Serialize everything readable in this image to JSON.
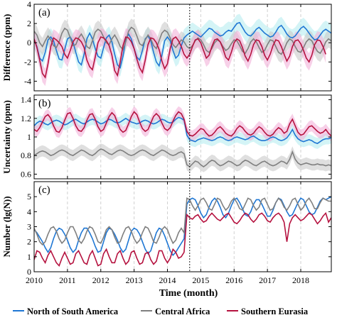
{
  "chart_data": [
    {
      "type": "line",
      "panel_label": "(a)",
      "ylabel": "Difference (ppm)",
      "ylim": [
        -5,
        4
      ],
      "yticks": [
        -4,
        -2,
        0,
        2,
        4
      ],
      "series": [
        {
          "name": "North of South America",
          "color": "#1f77d4",
          "band_color": "#b8ecf0",
          "values": [
            0.3,
            -0.4,
            -1.6,
            -1.9,
            -1.0,
            0.3,
            0.6,
            0.2,
            -0.8,
            -1.7,
            -1.8,
            -0.7,
            0.4,
            0.6,
            0.1,
            -1.0,
            -2.0,
            -2.3,
            -1.2,
            0.4,
            1.0,
            0.4,
            -0.6,
            -1.4,
            -1.6,
            -0.5,
            0.5,
            0.8,
            0.1,
            -1.2,
            -2.3,
            -2.6,
            -1.4,
            0.3,
            0.9,
            0.4,
            -0.6,
            -1.5,
            -1.8,
            -0.8,
            0.4,
            0.7,
            0.2,
            -1.0,
            -2.0,
            -2.4,
            -1.3,
            0.2,
            0.6,
            0.2,
            -0.8,
            -1.6,
            -1.3,
            -0.3,
            0.5,
            0.8,
            1.0,
            1.2,
            1.0,
            0.8,
            0.6,
            0.9,
            1.2,
            1.5,
            1.4,
            1.1,
            0.9,
            0.7,
            0.8,
            1.1,
            1.3,
            1.2,
            1.6,
            2.0,
            2.1,
            1.6,
            1.1,
            0.8,
            0.7,
            1.0,
            1.4,
            1.6,
            1.3,
            1.0,
            0.8,
            0.6,
            0.7,
            1.1,
            1.6,
            1.8,
            1.4,
            0.9,
            0.6,
            0.5,
            0.7,
            1.1,
            1.5,
            1.7,
            1.4,
            1.0,
            0.6,
            0.3,
            0.4,
            0.8,
            1.2,
            1.4,
            1.2,
            1.0
          ]
        },
        {
          "name": "Central Africa",
          "color": "#7f7f7f",
          "band_color": "#c9c9c9",
          "values": [
            1.2,
            0.8,
            0.0,
            -0.4,
            0.2,
            0.7,
            0.3,
            -0.3,
            -0.5,
            0.1,
            1.0,
            1.5,
            1.3,
            0.5,
            -0.3,
            -0.2,
            0.5,
            0.9,
            0.4,
            -0.4,
            -0.6,
            0.2,
            1.1,
            1.4,
            1.2,
            0.6,
            0.0,
            -0.2,
            0.4,
            0.8,
            0.3,
            -0.4,
            -0.7,
            0.1,
            1.2,
            1.6,
            1.4,
            0.7,
            -0.1,
            -0.3,
            0.3,
            0.8,
            0.4,
            -0.3,
            -0.6,
            0.2,
            1.0,
            1.3,
            1.1,
            0.5,
            -0.2,
            -0.5,
            -0.1,
            0.3,
            0.1,
            -0.4,
            -0.6,
            -0.3,
            0.2,
            0.5,
            0.3,
            -0.2,
            -0.8,
            -1.0,
            -0.6,
            0.0,
            0.3,
            0.1,
            -0.4,
            -0.8,
            -0.6,
            -0.1,
            0.3,
            0.2,
            -0.3,
            -0.9,
            -1.1,
            -0.6,
            0.1,
            0.4,
            0.1,
            -0.5,
            -1.0,
            -0.8,
            -0.2,
            0.3,
            0.2,
            -0.4,
            -1.0,
            -1.2,
            -0.7,
            0.0,
            0.4,
            0.2,
            -0.4,
            -0.9,
            -1.0,
            -0.5,
            0.1,
            0.4,
            0.2,
            -0.4,
            -0.9,
            -1.1,
            -0.6,
            0.1,
            0.4,
            0.2
          ]
        },
        {
          "name": "Southern Eurasia",
          "color": "#b5123f",
          "band_color": "#f2b0d8",
          "values": [
            0.4,
            -0.5,
            -1.8,
            -3.2,
            -3.6,
            -2.2,
            -0.4,
            0.5,
            0.3,
            0.0,
            -0.4,
            -1.2,
            -1.6,
            -0.8,
            0.1,
            0.5,
            0.4,
            0.1,
            -0.5,
            -1.8,
            -2.5,
            -2.8,
            -1.5,
            0.0,
            0.6,
            0.5,
            0.2,
            -0.3,
            -1.3,
            -2.9,
            -3.4,
            -2.0,
            -0.3,
            0.6,
            0.5,
            0.1,
            -0.6,
            -1.7,
            -2.6,
            -3.1,
            -1.8,
            -0.2,
            0.5,
            0.4,
            0.0,
            -0.7,
            -1.9,
            -2.7,
            -2.2,
            -0.6,
            0.4,
            0.6,
            0.2,
            -0.4,
            -1.2,
            -1.6,
            -1.2,
            -0.4,
            0.3,
            0.4,
            0.0,
            -0.8,
            -1.6,
            -1.3,
            -0.4,
            0.3,
            0.4,
            0.1,
            -0.6,
            -1.5,
            -1.8,
            -1.0,
            0.0,
            0.4,
            0.2,
            -0.5,
            -1.4,
            -1.9,
            -1.2,
            -0.2,
            0.3,
            0.2,
            -0.4,
            -1.3,
            -1.8,
            -1.2,
            -0.3,
            0.3,
            0.2,
            -0.4,
            -1.2,
            -1.9,
            -1.4,
            -0.4,
            0.2,
            0.3,
            -0.1,
            -0.8,
            -1.6,
            -2.0,
            -1.3,
            -0.2,
            0.3,
            0.2,
            -0.4,
            -1.2
          ]
        }
      ]
    },
    {
      "type": "line",
      "panel_label": "(b)",
      "ylabel": "Uncertainty (ppm)",
      "ylim": [
        0.55,
        1.45
      ],
      "yticks": [
        0.6,
        0.8,
        1.0,
        1.2,
        1.4
      ],
      "series": [
        {
          "name": "North of South America",
          "color": "#1f77d4",
          "band_color": "#b8ecf0",
          "values": [
            1.12,
            1.15,
            1.17,
            1.16,
            1.14,
            1.13,
            1.15,
            1.17,
            1.18,
            1.17,
            1.15,
            1.13,
            1.14,
            1.16,
            1.18,
            1.19,
            1.17,
            1.15,
            1.14,
            1.16,
            1.18,
            1.19,
            1.18,
            1.16,
            1.14,
            1.15,
            1.17,
            1.19,
            1.18,
            1.16,
            1.15,
            1.16,
            1.18,
            1.2,
            1.18,
            1.16,
            1.15,
            1.14,
            1.15,
            1.17,
            1.18,
            1.17,
            1.15,
            1.14,
            1.15,
            1.17,
            1.19,
            1.18,
            1.16,
            1.15,
            1.16,
            1.19,
            1.21,
            1.2,
            1.18,
            1.02,
            0.97,
            0.96,
            0.95,
            0.97,
            0.98,
            0.99,
            0.98,
            0.97,
            0.96,
            0.97,
            0.99,
            1.0,
            0.99,
            0.97,
            0.96,
            0.97,
            0.99,
            1.0,
            0.99,
            0.98,
            0.97,
            0.98,
            1.0,
            1.01,
            0.99,
            0.97,
            0.96,
            0.96,
            0.97,
            0.99,
            1.0,
            0.99,
            0.97,
            0.96,
            0.97,
            0.99,
            1.03,
            1.08,
            1.02,
            0.98,
            0.96,
            0.95,
            0.96,
            0.97,
            0.96,
            0.94,
            0.93,
            0.95,
            0.97,
            0.98,
            0.98,
            0.99
          ]
        },
        {
          "name": "Central Africa",
          "color": "#7f7f7f",
          "band_color": "#c9c9c9",
          "values": [
            0.8,
            0.82,
            0.84,
            0.85,
            0.84,
            0.82,
            0.8,
            0.81,
            0.83,
            0.85,
            0.86,
            0.85,
            0.83,
            0.81,
            0.8,
            0.82,
            0.84,
            0.86,
            0.85,
            0.83,
            0.81,
            0.8,
            0.82,
            0.85,
            0.87,
            0.86,
            0.84,
            0.82,
            0.81,
            0.83,
            0.85,
            0.86,
            0.85,
            0.83,
            0.81,
            0.8,
            0.81,
            0.83,
            0.85,
            0.86,
            0.85,
            0.83,
            0.81,
            0.8,
            0.82,
            0.84,
            0.86,
            0.85,
            0.83,
            0.81,
            0.8,
            0.81,
            0.83,
            0.84,
            0.82,
            0.7,
            0.68,
            0.71,
            0.74,
            0.73,
            0.7,
            0.68,
            0.7,
            0.73,
            0.75,
            0.74,
            0.71,
            0.69,
            0.7,
            0.72,
            0.74,
            0.73,
            0.71,
            0.69,
            0.7,
            0.73,
            0.75,
            0.74,
            0.72,
            0.7,
            0.69,
            0.71,
            0.73,
            0.74,
            0.72,
            0.7,
            0.69,
            0.7,
            0.72,
            0.74,
            0.73,
            0.71,
            0.76,
            0.84,
            0.76,
            0.72,
            0.7,
            0.71,
            0.72,
            0.71,
            0.7,
            0.7,
            0.71,
            0.7,
            0.7,
            0.69,
            0.7,
            0.69
          ]
        },
        {
          "name": "Southern Eurasia",
          "color": "#b5123f",
          "band_color": "#f2b0d8",
          "values": [
            1.08,
            1.06,
            1.1,
            1.16,
            1.22,
            1.24,
            1.2,
            1.12,
            1.06,
            1.05,
            1.1,
            1.18,
            1.25,
            1.26,
            1.2,
            1.12,
            1.07,
            1.06,
            1.1,
            1.18,
            1.24,
            1.25,
            1.19,
            1.11,
            1.06,
            1.08,
            1.15,
            1.22,
            1.26,
            1.23,
            1.15,
            1.08,
            1.05,
            1.07,
            1.14,
            1.22,
            1.27,
            1.24,
            1.16,
            1.09,
            1.06,
            1.08,
            1.15,
            1.22,
            1.25,
            1.22,
            1.15,
            1.09,
            1.07,
            1.1,
            1.17,
            1.23,
            1.27,
            1.25,
            1.19,
            1.06,
            1.02,
            1.01,
            1.03,
            1.06,
            1.09,
            1.08,
            1.04,
            1.01,
            1.02,
            1.05,
            1.09,
            1.11,
            1.08,
            1.04,
            1.02,
            1.01,
            1.04,
            1.09,
            1.12,
            1.1,
            1.06,
            1.03,
            1.02,
            1.04,
            1.08,
            1.11,
            1.09,
            1.05,
            1.02,
            1.01,
            1.03,
            1.07,
            1.1,
            1.08,
            1.04,
            1.06,
            1.14,
            1.19,
            1.12,
            1.05,
            1.02,
            1.03,
            1.07,
            1.11,
            1.12,
            1.09,
            1.06,
            1.04,
            1.05,
            1.08,
            1.04,
            1.01
          ]
        }
      ]
    },
    {
      "type": "line",
      "panel_label": "(c)",
      "ylabel": "Number (lg(N))",
      "ylim": [
        0,
        6
      ],
      "yticks": [
        0,
        1,
        2,
        3,
        4,
        5
      ],
      "series": [
        {
          "name": "North of South America",
          "color": "#1f77d4",
          "values": [
            2.8,
            2.6,
            2.3,
            2.0,
            1.6,
            1.3,
            1.6,
            2.2,
            2.7,
            2.9,
            2.8,
            2.5,
            2.1,
            1.6,
            1.3,
            1.5,
            2.1,
            2.6,
            2.9,
            2.9,
            2.6,
            2.2,
            1.7,
            1.3,
            1.4,
            2.0,
            2.6,
            2.9,
            2.8,
            2.5,
            2.1,
            1.6,
            1.3,
            1.5,
            2.1,
            2.7,
            2.9,
            2.8,
            2.5,
            2.0,
            1.5,
            1.2,
            1.4,
            2.0,
            2.6,
            2.9,
            2.8,
            2.4,
            1.9,
            1.4,
            1.1,
            1.3,
            1.6,
            1.9,
            2.2,
            4.5,
            4.8,
            4.9,
            4.8,
            4.4,
            3.9,
            3.6,
            3.8,
            4.3,
            4.7,
            4.9,
            4.7,
            4.3,
            3.8,
            3.6,
            3.9,
            4.4,
            4.8,
            4.9,
            4.6,
            4.2,
            3.8,
            3.7,
            4.0,
            4.5,
            4.8,
            4.8,
            4.5,
            4.1,
            3.7,
            3.7,
            4.1,
            4.6,
            4.9,
            4.8,
            4.4,
            4.0,
            3.7,
            3.8,
            4.2,
            4.6,
            4.9,
            4.8,
            4.4,
            4.0,
            3.8,
            3.9,
            4.3,
            4.7,
            4.9,
            4.8,
            4.9,
            5.0
          ]
        },
        {
          "name": "Central Africa",
          "color": "#7f7f7f",
          "values": [
            2.9,
            2.5,
            2.0,
            1.8,
            2.0,
            2.5,
            2.9,
            3.0,
            2.7,
            2.2,
            1.9,
            2.1,
            2.6,
            3.0,
            3.0,
            2.6,
            2.1,
            1.9,
            2.2,
            2.7,
            3.0,
            2.9,
            2.5,
            2.0,
            1.9,
            2.3,
            2.8,
            3.0,
            2.8,
            2.3,
            1.9,
            2.0,
            2.5,
            2.9,
            3.0,
            2.7,
            2.2,
            1.9,
            2.1,
            2.6,
            3.0,
            2.9,
            2.5,
            2.0,
            1.9,
            2.3,
            2.8,
            3.0,
            2.8,
            2.3,
            1.9,
            2.1,
            2.6,
            2.9,
            2.6,
            4.9,
            4.8,
            4.4,
            4.1,
            4.4,
            4.8,
            4.9,
            4.6,
            4.2,
            4.1,
            4.5,
            4.9,
            4.8,
            4.4,
            4.1,
            4.3,
            4.7,
            4.9,
            4.6,
            4.2,
            4.1,
            4.5,
            4.9,
            4.8,
            4.4,
            4.1,
            4.3,
            4.8,
            4.9,
            4.5,
            4.1,
            4.2,
            4.6,
            4.9,
            4.7,
            4.3,
            4.1,
            4.4,
            4.8,
            4.9,
            4.5,
            4.1,
            4.3,
            4.7,
            4.9,
            4.6,
            4.2,
            4.2,
            4.6,
            4.9,
            4.8,
            4.7,
            4.7
          ]
        },
        {
          "name": "Southern Eurasia",
          "color": "#b5123f",
          "values": [
            0.8,
            1.4,
            1.3,
            0.9,
            0.6,
            1.1,
            1.4,
            1.0,
            0.6,
            0.4,
            0.9,
            1.3,
            0.9,
            0.5,
            0.6,
            1.2,
            1.4,
            1.0,
            0.6,
            0.5,
            1.1,
            1.4,
            0.9,
            0.4,
            0.5,
            1.2,
            1.5,
            1.0,
            0.6,
            0.6,
            1.2,
            1.4,
            0.9,
            0.5,
            0.7,
            1.3,
            1.4,
            0.9,
            0.5,
            0.6,
            1.2,
            1.3,
            0.8,
            0.5,
            0.7,
            1.4,
            1.4,
            0.9,
            0.6,
            0.9,
            1.5,
            1.3,
            0.9,
            1.0,
            1.3,
            3.8,
            3.6,
            3.5,
            3.7,
            3.8,
            3.5,
            3.3,
            3.4,
            3.7,
            3.9,
            3.7,
            3.5,
            3.4,
            3.6,
            3.8,
            3.9,
            3.6,
            3.3,
            3.2,
            3.4,
            3.7,
            3.9,
            3.8,
            3.5,
            3.3,
            3.5,
            3.8,
            3.9,
            3.7,
            3.4,
            3.3,
            3.6,
            3.8,
            3.9,
            3.7,
            3.3,
            2.0,
            3.2,
            3.6,
            3.8,
            3.6,
            3.4,
            3.5,
            3.7,
            3.9,
            3.8,
            3.5,
            3.2,
            3.4,
            3.7,
            3.9,
            3.3,
            3.6
          ]
        }
      ]
    }
  ],
  "x_axis": {
    "label": "Time (month)",
    "start_year": 2010,
    "end_year": 2018.917,
    "tick_labels": [
      "2010",
      "2011",
      "2012",
      "2013",
      "2014",
      "2015",
      "2016",
      "2017",
      "2018"
    ],
    "break_year": 2014.667
  },
  "legend": {
    "placement": "bottom",
    "items": [
      {
        "label": "North of South America",
        "color": "#1f77d4"
      },
      {
        "label": "Central Africa",
        "color": "#7f7f7f"
      },
      {
        "label": "Southern Eurasia",
        "color": "#b5123f"
      }
    ]
  }
}
